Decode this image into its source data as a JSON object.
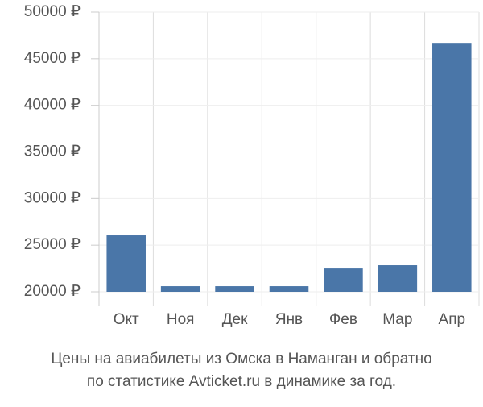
{
  "chart_data": {
    "type": "bar",
    "title": "Цены на авиабилеты из Омска в Наманган и обратно",
    "subtitle": "по статистике Avticket.ru в динамике за год.",
    "categories": [
      "Окт",
      "Ноя",
      "Дек",
      "Янв",
      "Фев",
      "Мар",
      "Апр"
    ],
    "values": [
      26050,
      20600,
      20600,
      20600,
      22500,
      22850,
      46700
    ],
    "color": "#4a76a8",
    "ylim": [
      20000,
      50000
    ],
    "yticks": [
      {
        "value": 20000,
        "label": "20000 ₽"
      },
      {
        "value": 25000,
        "label": "25000 ₽"
      },
      {
        "value": 30000,
        "label": "30000 ₽"
      },
      {
        "value": 35000,
        "label": "35000 ₽"
      },
      {
        "value": 40000,
        "label": "40000 ₽"
      },
      {
        "value": 45000,
        "label": "45000 ₽"
      },
      {
        "value": 50000,
        "label": "50000 ₽"
      }
    ],
    "grid": true
  }
}
